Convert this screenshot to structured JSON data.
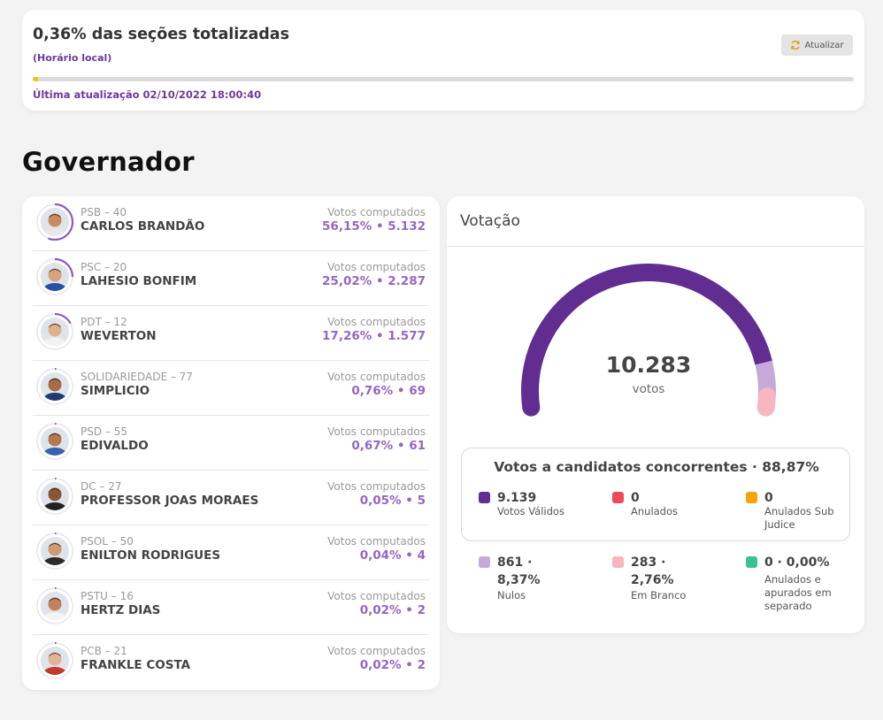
{
  "status": {
    "title": "0,36% das seções totalizadas",
    "timezone_note": "(Horário local)",
    "refresh_label": "Atualizar",
    "progress_percent": 0.36,
    "last_update": "Última atualização 02/10/2022 18:00:40"
  },
  "section_title": "Governador",
  "votes_label": "Votos computados",
  "candidates": [
    {
      "party": "PSB – 40",
      "name": "CARLOS BRANDÃO",
      "votes": "56,15%  •  5.132",
      "share": 56.15
    },
    {
      "party": "PSC – 20",
      "name": "LAHESIO BONFIM",
      "votes": "25,02%  •  2.287",
      "share": 25.02
    },
    {
      "party": "PDT – 12",
      "name": "WEVERTON",
      "votes": "17,26%  •  1.577",
      "share": 17.26
    },
    {
      "party": "SOLIDARIEDADE – 77",
      "name": "SIMPLICIO",
      "votes": "0,76%  •  69",
      "share": 0.76
    },
    {
      "party": "PSD – 55",
      "name": "EDIVALDO",
      "votes": "0,67%  •  61",
      "share": 0.67
    },
    {
      "party": "DC – 27",
      "name": "PROFESSOR JOAS MORAES",
      "votes": "0,05%  •  5",
      "share": 0.05
    },
    {
      "party": "PSOL – 50",
      "name": "ENILTON RODRIGUES",
      "votes": "0,04%  •  4",
      "share": 0.04
    },
    {
      "party": "PSTU – 16",
      "name": "HERTZ DIAS",
      "votes": "0,02%  •  2",
      "share": 0.02
    },
    {
      "party": "PCB – 21",
      "name": "FRANKLE COSTA",
      "votes": "0,02%  •  2",
      "share": 0.02
    }
  ],
  "voting": {
    "title": "Votação",
    "total": "10.283",
    "unit": "votos",
    "valid_title": "Votos a candidatos concorrentes · 88,87%",
    "stats_inner": [
      {
        "value": "9.139",
        "label": "Votos Válidos",
        "color": "#612d91"
      },
      {
        "value": "0",
        "label": "Anulados",
        "color": "#ee4a5c"
      },
      {
        "value": "0",
        "label": "Anulados Sub Judice",
        "color": "#f5a40a"
      }
    ],
    "stats_outer": [
      {
        "value": "861 · 8,37%",
        "label": "Nulos",
        "color": "#c6a9d8"
      },
      {
        "value": "283 · 2,76%",
        "label": "Em Branco",
        "color": "#f7b6c0"
      },
      {
        "value": "0 · 0,00%",
        "label": "Anulados e apurados em separado",
        "color": "#39c290"
      }
    ],
    "gauge": {
      "segments": [
        {
          "name": "Votos Válidos",
          "share": 88.87,
          "color": "#612d91"
        },
        {
          "name": "Nulos",
          "share": 8.37,
          "color": "#c6a9d8"
        },
        {
          "name": "Em Branco",
          "share": 2.76,
          "color": "#f7b6c0"
        }
      ]
    }
  },
  "colors": {
    "accent": "#612d91",
    "progress": "#f0c419"
  }
}
